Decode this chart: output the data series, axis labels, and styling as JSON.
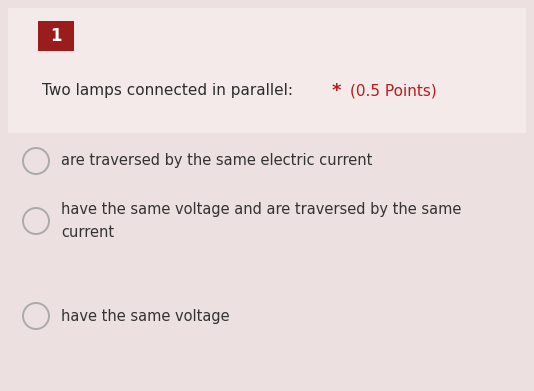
{
  "background_color": "#ede0e0",
  "top_section_color": "#ede0e0",
  "number_box_color": "#9b1c1c",
  "number_box_text": "1",
  "number_box_text_color": "#ffffff",
  "question_text": "Two lamps connected in parallel:",
  "required_star": "*",
  "points_text": "(0.5 Points)",
  "required_color": "#b71c1c",
  "points_color": "#b71c1c",
  "question_text_color": "#2c2c2c",
  "options": [
    "are traversed by the same electric current",
    "have the same voltage and are traversed by the same\ncurrent",
    "have the same voltage"
  ],
  "option_text_color": "#333333",
  "radio_edge_color": "#aaaaaa",
  "radio_face_color": "#ede0e0",
  "figsize": [
    5.34,
    3.91
  ],
  "dpi": 100
}
